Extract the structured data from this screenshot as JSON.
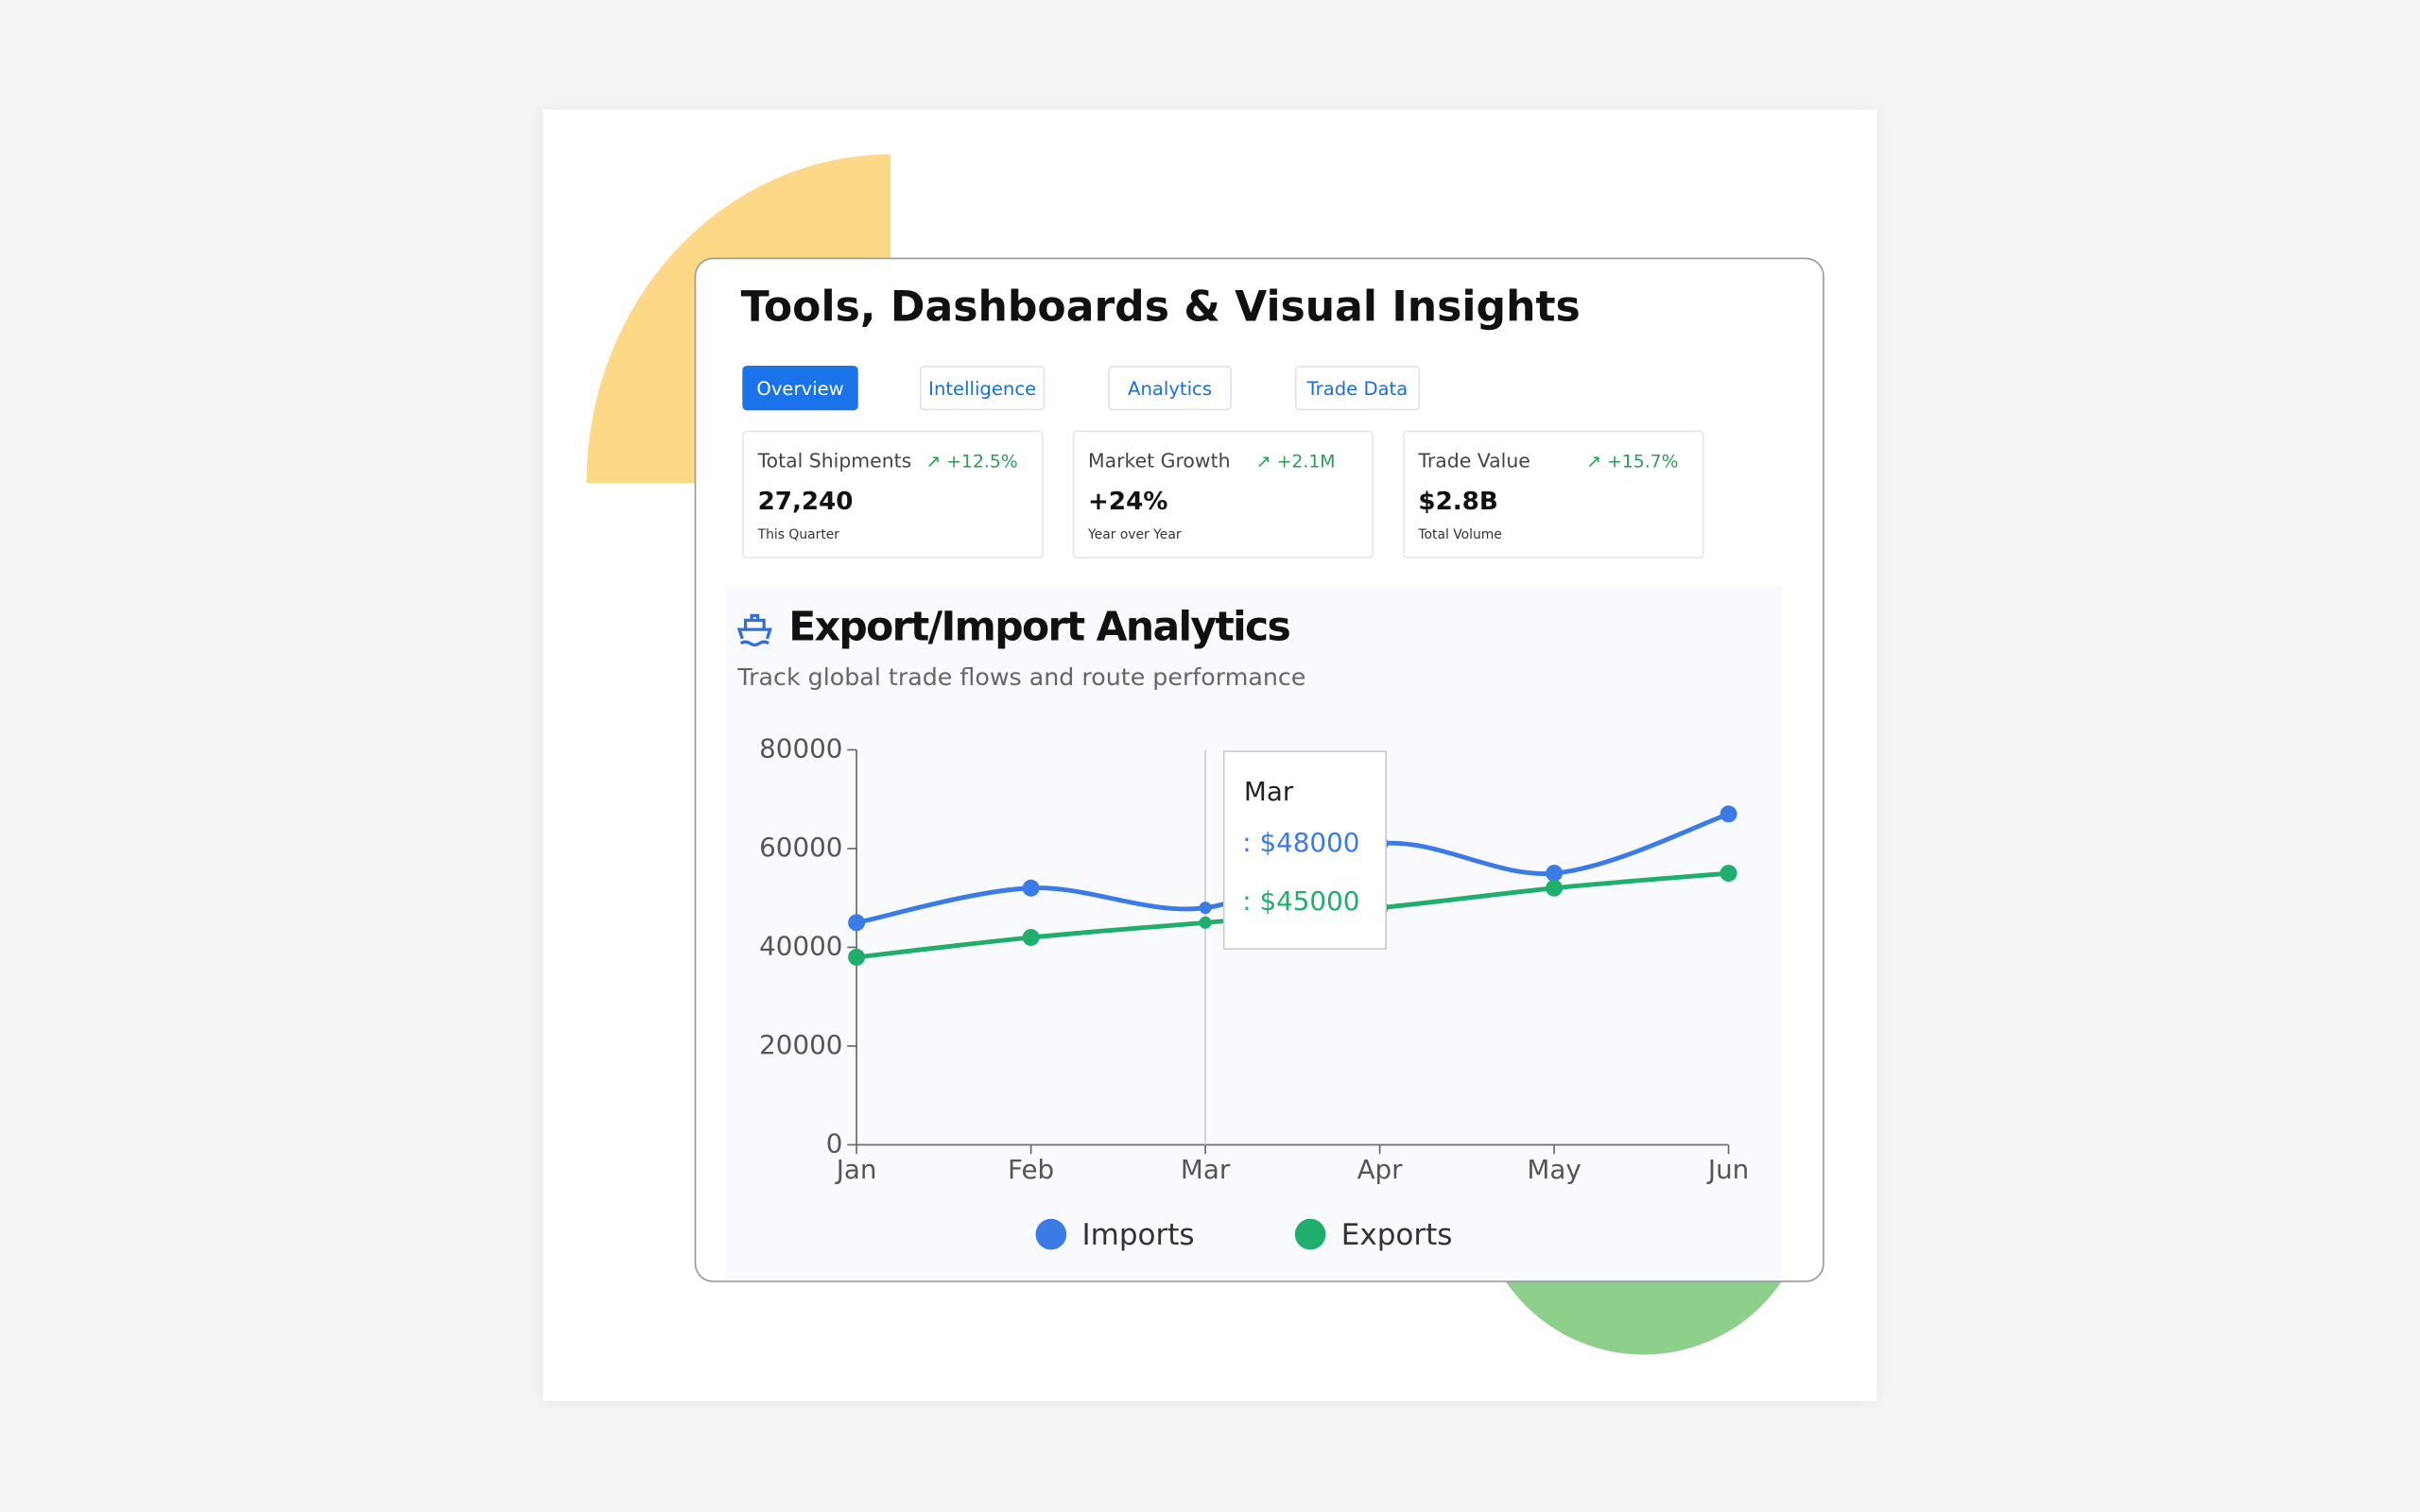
{
  "header": {
    "title": "Tools, Dashboards & Visual Insights"
  },
  "tabs": [
    "Overview",
    "Intelligence",
    "Analytics",
    "Trade Data"
  ],
  "stats": [
    {
      "label": "Total Shipments",
      "change": "+12.5%",
      "value": "27,240",
      "caption": "This Quarter"
    },
    {
      "label": "Market Growth",
      "change": "+2.1M",
      "value": "+24%",
      "caption": "Year over Year"
    },
    {
      "label": "Trade Value",
      "change": "+15.7%",
      "value": "$2.8B",
      "caption": "Total Volume"
    }
  ],
  "section": {
    "title": "Export/Import Analytics",
    "subtitle": "Track global trade flows and route performance"
  },
  "chart_data": {
    "type": "line",
    "categories": [
      "Jan",
      "Feb",
      "Mar",
      "Apr",
      "May",
      "Jun"
    ],
    "series": [
      {
        "name": "Imports",
        "color": "#3b7be6",
        "values": [
          45000,
          52000,
          48000,
          61000,
          55000,
          67000
        ]
      },
      {
        "name": "Exports",
        "color": "#1fae6b",
        "values": [
          38000,
          42000,
          45000,
          48000,
          52000,
          55000
        ]
      }
    ],
    "ylim": [
      0,
      80000
    ],
    "yticks": [
      0,
      20000,
      40000,
      60000,
      80000
    ],
    "tooltip": {
      "index": 2,
      "labels": [
        ": $48000",
        ": $45000"
      ]
    }
  }
}
